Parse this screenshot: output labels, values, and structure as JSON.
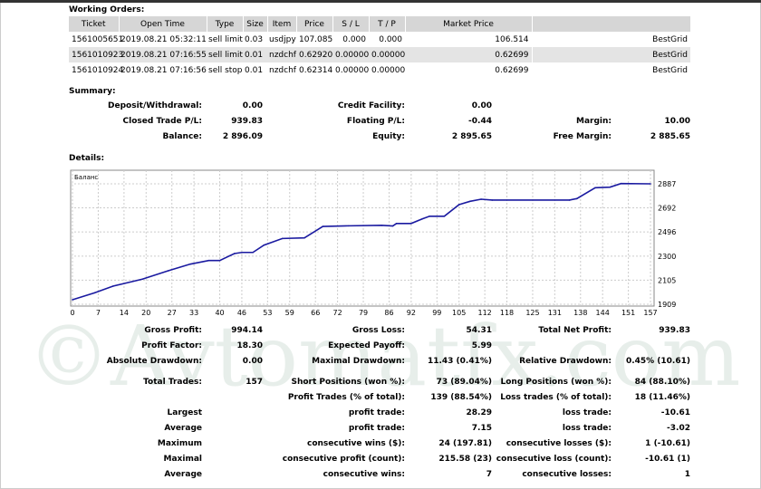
{
  "working_orders": {
    "title": "Working Orders:",
    "columns": [
      "Ticket",
      "Open Time",
      "Type",
      "Size",
      "Item",
      "Price",
      "S / L",
      "T / P",
      "Market Price",
      ""
    ],
    "rows": [
      [
        "1561005651",
        "2019.08.21 05:32:11",
        "sell limit",
        "0.03",
        "usdjpy",
        "107.085",
        "0.000",
        "0.000",
        "106.514",
        "BestGrid"
      ],
      [
        "1561010923",
        "2019.08.21 07:16:55",
        "sell limit",
        "0.01",
        "nzdchf",
        "0.62920",
        "0.00000",
        "0.00000",
        "0.62699",
        "BestGrid"
      ],
      [
        "1561010924",
        "2019.08.21 07:16:56",
        "sell stop",
        "0.01",
        "nzdchf",
        "0.62314",
        "0.00000",
        "0.00000",
        "0.62699",
        "BestGrid"
      ]
    ]
  },
  "summary": {
    "title": "Summary:",
    "rows": [
      [
        "Deposit/Withdrawal:",
        "0.00",
        "Credit Facility:",
        "0.00",
        "",
        ""
      ],
      [
        "Closed Trade P/L:",
        "939.83",
        "Floating P/L:",
        "-0.44",
        "Margin:",
        "10.00"
      ],
      [
        "Balance:",
        "2 896.09",
        "Equity:",
        "2 895.65",
        "Free Margin:",
        "2 885.65"
      ]
    ]
  },
  "details": {
    "title": "Details:",
    "stats_a": [
      [
        "Gross Profit:",
        "994.14",
        "Gross Loss:",
        "54.31",
        "Total Net Profit:",
        "939.83"
      ],
      [
        "Profit Factor:",
        "18.30",
        "Expected Payoff:",
        "5.99",
        "",
        ""
      ],
      [
        "Absolute Drawdown:",
        "0.00",
        "Maximal Drawdown:",
        "11.43 (0.41%)",
        "Relative Drawdown:",
        "0.45% (10.61)"
      ]
    ],
    "stats_b": [
      [
        "Total Trades:",
        "157",
        "Short Positions (won %):",
        "73 (89.04%)",
        "Long Positions (won %):",
        "84 (88.10%)"
      ],
      [
        "",
        "",
        "Profit Trades (% of total):",
        "139 (88.54%)",
        "Loss trades (% of total):",
        "18 (11.46%)"
      ],
      [
        "Largest",
        "",
        "profit trade:",
        "28.29",
        "loss trade:",
        "-10.61"
      ],
      [
        "Average",
        "",
        "profit trade:",
        "7.15",
        "loss trade:",
        "-3.02"
      ],
      [
        "Maximum",
        "",
        "consecutive wins ($):",
        "24 (197.81)",
        "consecutive losses ($):",
        "1 (-10.61)"
      ],
      [
        "Maximal",
        "",
        "consecutive profit (count):",
        "215.58 (23)",
        "consecutive loss (count):",
        "-10.61 (1)"
      ],
      [
        "Average",
        "",
        "consecutive wins:",
        "7",
        "consecutive losses:",
        "1"
      ]
    ]
  },
  "watermark": "©Avtomatfx.com",
  "chart_data": {
    "type": "line",
    "title": "Баланс",
    "line_color": "#1a1aa0",
    "grid": true,
    "xlim": [
      0,
      157
    ],
    "ylim": [
      1909,
      2887
    ],
    "x_ticks": [
      0,
      7,
      14,
      20,
      27,
      33,
      40,
      46,
      53,
      59,
      66,
      72,
      79,
      86,
      92,
      99,
      105,
      112,
      118,
      125,
      131,
      138,
      144,
      151,
      157
    ],
    "y_ticks": [
      1909,
      2105,
      2300,
      2496,
      2692,
      2887
    ],
    "x": [
      0,
      6,
      11,
      19,
      26,
      32,
      37,
      40,
      44,
      46,
      49,
      52,
      57,
      63,
      68,
      75,
      84,
      87,
      88,
      92,
      95,
      97,
      101,
      105,
      108,
      111,
      114,
      135,
      137,
      142,
      146,
      149,
      157
    ],
    "y": [
      1946,
      2002,
      2056,
      2113,
      2181,
      2235,
      2264,
      2264,
      2321,
      2330,
      2330,
      2389,
      2443,
      2448,
      2541,
      2546,
      2550,
      2545,
      2565,
      2565,
      2602,
      2624,
      2624,
      2718,
      2745,
      2762,
      2755,
      2755,
      2767,
      2855,
      2860,
      2889,
      2887
    ]
  }
}
